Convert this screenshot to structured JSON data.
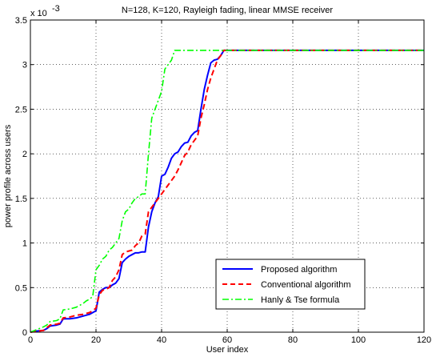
{
  "chart_data": {
    "type": "line",
    "title": "N=128, K=120, Rayleigh fading, linear MMSE receiver",
    "xlabel": "User index",
    "ylabel": "power profile across users",
    "y_scale_label": "x 10",
    "y_scale_exponent": "-3",
    "xlim": [
      0,
      120
    ],
    "ylim": [
      0,
      3.5
    ],
    "xticks": [
      0,
      20,
      40,
      60,
      80,
      100,
      120
    ],
    "yticks": [
      0,
      0.5,
      1,
      1.5,
      2,
      2.5,
      3,
      3.5
    ],
    "xtick_labels": [
      "0",
      "20",
      "40",
      "60",
      "80",
      "100",
      "120"
    ],
    "ytick_labels": [
      "0",
      "0.5",
      "1",
      "1.5",
      "2",
      "2.5",
      "3",
      "3.5"
    ],
    "grid": true,
    "legend_position": "bottom-right",
    "series": [
      {
        "name": "Proposed algorithm",
        "color": "#0000ff",
        "style": "solid",
        "x": [
          0,
          1,
          4,
          5,
          6,
          8,
          9,
          10,
          12,
          14,
          16,
          18,
          19,
          20,
          21,
          22,
          23,
          24,
          25,
          26,
          27,
          28,
          29,
          30,
          31,
          32,
          33,
          34,
          35,
          36,
          37,
          38,
          39,
          40,
          41,
          42,
          43,
          44,
          45,
          46,
          47,
          48,
          49,
          50,
          51,
          52,
          53,
          54,
          55,
          56,
          57,
          58,
          59,
          60,
          61,
          62,
          120
        ],
        "y": [
          0,
          0.01,
          0.02,
          0.04,
          0.07,
          0.08,
          0.09,
          0.15,
          0.15,
          0.16,
          0.18,
          0.2,
          0.22,
          0.24,
          0.45,
          0.48,
          0.5,
          0.5,
          0.53,
          0.55,
          0.6,
          0.78,
          0.82,
          0.85,
          0.87,
          0.89,
          0.89,
          0.9,
          0.9,
          1.18,
          1.35,
          1.45,
          1.52,
          1.75,
          1.77,
          1.85,
          1.95,
          2.0,
          2.02,
          2.08,
          2.12,
          2.13,
          2.2,
          2.24,
          2.26,
          2.5,
          2.72,
          2.88,
          3.02,
          3.05,
          3.06,
          3.1,
          3.16,
          3.16,
          3.16,
          3.16,
          3.16
        ]
      },
      {
        "name": "Conventional algorithm",
        "color": "#ff0000",
        "style": "dashed",
        "x": [
          0,
          2,
          4,
          5,
          6,
          8,
          9,
          10,
          12,
          14,
          16,
          18,
          19,
          20,
          21,
          22,
          23,
          24,
          25,
          26,
          27,
          28,
          29,
          30,
          31,
          32,
          33,
          34,
          35,
          36,
          37,
          38,
          39,
          40,
          41,
          42,
          43,
          44,
          45,
          46,
          47,
          48,
          49,
          50,
          51,
          52,
          53,
          54,
          55,
          56,
          57,
          58,
          59,
          60,
          120
        ],
        "y": [
          0,
          0.01,
          0.02,
          0.05,
          0.08,
          0.09,
          0.1,
          0.16,
          0.17,
          0.19,
          0.2,
          0.22,
          0.24,
          0.27,
          0.42,
          0.47,
          0.48,
          0.5,
          0.58,
          0.62,
          0.7,
          0.87,
          0.9,
          0.91,
          0.92,
          0.97,
          1.0,
          1.08,
          1.1,
          1.35,
          1.4,
          1.45,
          1.5,
          1.55,
          1.6,
          1.65,
          1.7,
          1.75,
          1.82,
          1.9,
          1.98,
          2.02,
          2.1,
          2.15,
          2.2,
          2.4,
          2.55,
          2.72,
          2.85,
          2.95,
          3.05,
          3.1,
          3.16,
          3.16,
          3.16
        ]
      },
      {
        "name": "Hanly & Tse formula",
        "color": "#00ff00",
        "style": "dashdot",
        "x": [
          0,
          2,
          4,
          5,
          6,
          8,
          9,
          10,
          12,
          14,
          16,
          17,
          18,
          19,
          20,
          21,
          22,
          23,
          24,
          25,
          26,
          27,
          28,
          29,
          30,
          31,
          32,
          33,
          34,
          35,
          36,
          37,
          38,
          39,
          40,
          41,
          42,
          43,
          44,
          45,
          120
        ],
        "y": [
          0,
          0.03,
          0.06,
          0.08,
          0.12,
          0.13,
          0.15,
          0.25,
          0.26,
          0.28,
          0.32,
          0.35,
          0.37,
          0.4,
          0.7,
          0.75,
          0.82,
          0.85,
          0.92,
          0.95,
          1.0,
          1.05,
          1.25,
          1.35,
          1.38,
          1.45,
          1.5,
          1.52,
          1.55,
          1.55,
          2.0,
          2.4,
          2.5,
          2.6,
          2.7,
          2.95,
          3.0,
          3.05,
          3.16,
          3.16,
          3.16
        ]
      }
    ]
  }
}
